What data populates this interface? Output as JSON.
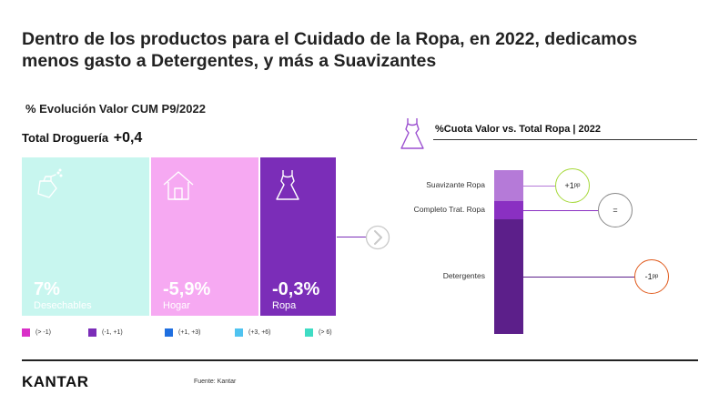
{
  "title": "Dentro de los productos para el Cuidado de la Ropa, en 2022, dedicamos menos gasto a Detergentes, y más a Suavizantes",
  "left": {
    "subtitle": "% Evolución Valor CUM P9/2022",
    "total_label": "Total Droguería",
    "total_value": "+0,4"
  },
  "right": {
    "title": "%Cuota Valor vs. Total Ropa  |  2022"
  },
  "legend": [
    {
      "label": "(> -1)",
      "color": "#d930c8"
    },
    {
      "label": "(-1, +1)",
      "color": "#7b2db8"
    },
    {
      "label": "(+1, +3)",
      "color": "#1f6fe0"
    },
    {
      "label": "(+3, +6)",
      "color": "#4fc3f0"
    },
    {
      "label": "(> 6)",
      "color": "#3fdcc4"
    }
  ],
  "footer": {
    "logo": "KANTAR",
    "source": "Fuente: Kantar"
  },
  "colors": {
    "desechables": "#c8f6ef",
    "hogar": "#f6a9f2",
    "ropa": "#7b2db8",
    "suavizante": "#b57ad8",
    "completo": "#8a30c2",
    "detergentes": "#5c1f8a",
    "positive": "#a6d93a",
    "neutral": "#888888",
    "negative": "#e05a1c"
  },
  "chart_data": [
    {
      "type": "treemap",
      "title": "% Evolución Valor CUM P9/2022",
      "categories": [
        "Desechables",
        "Hogar",
        "Ropa"
      ],
      "values": [
        "7%",
        "-5,9%",
        "-0,3%"
      ],
      "icons": [
        "spray-bottle-icon",
        "house-icon",
        "dress-icon"
      ]
    },
    {
      "type": "bar",
      "stacked": true,
      "title": "%Cuota Valor vs. Total Ropa  |  2022",
      "categories": [
        "Suavizante Ropa",
        "Completo Trat. Ropa",
        "Detergentes"
      ],
      "share_pct": [
        19,
        11,
        70
      ],
      "changes": [
        "+1",
        "=",
        "-1"
      ],
      "change_unit": "pp"
    }
  ]
}
